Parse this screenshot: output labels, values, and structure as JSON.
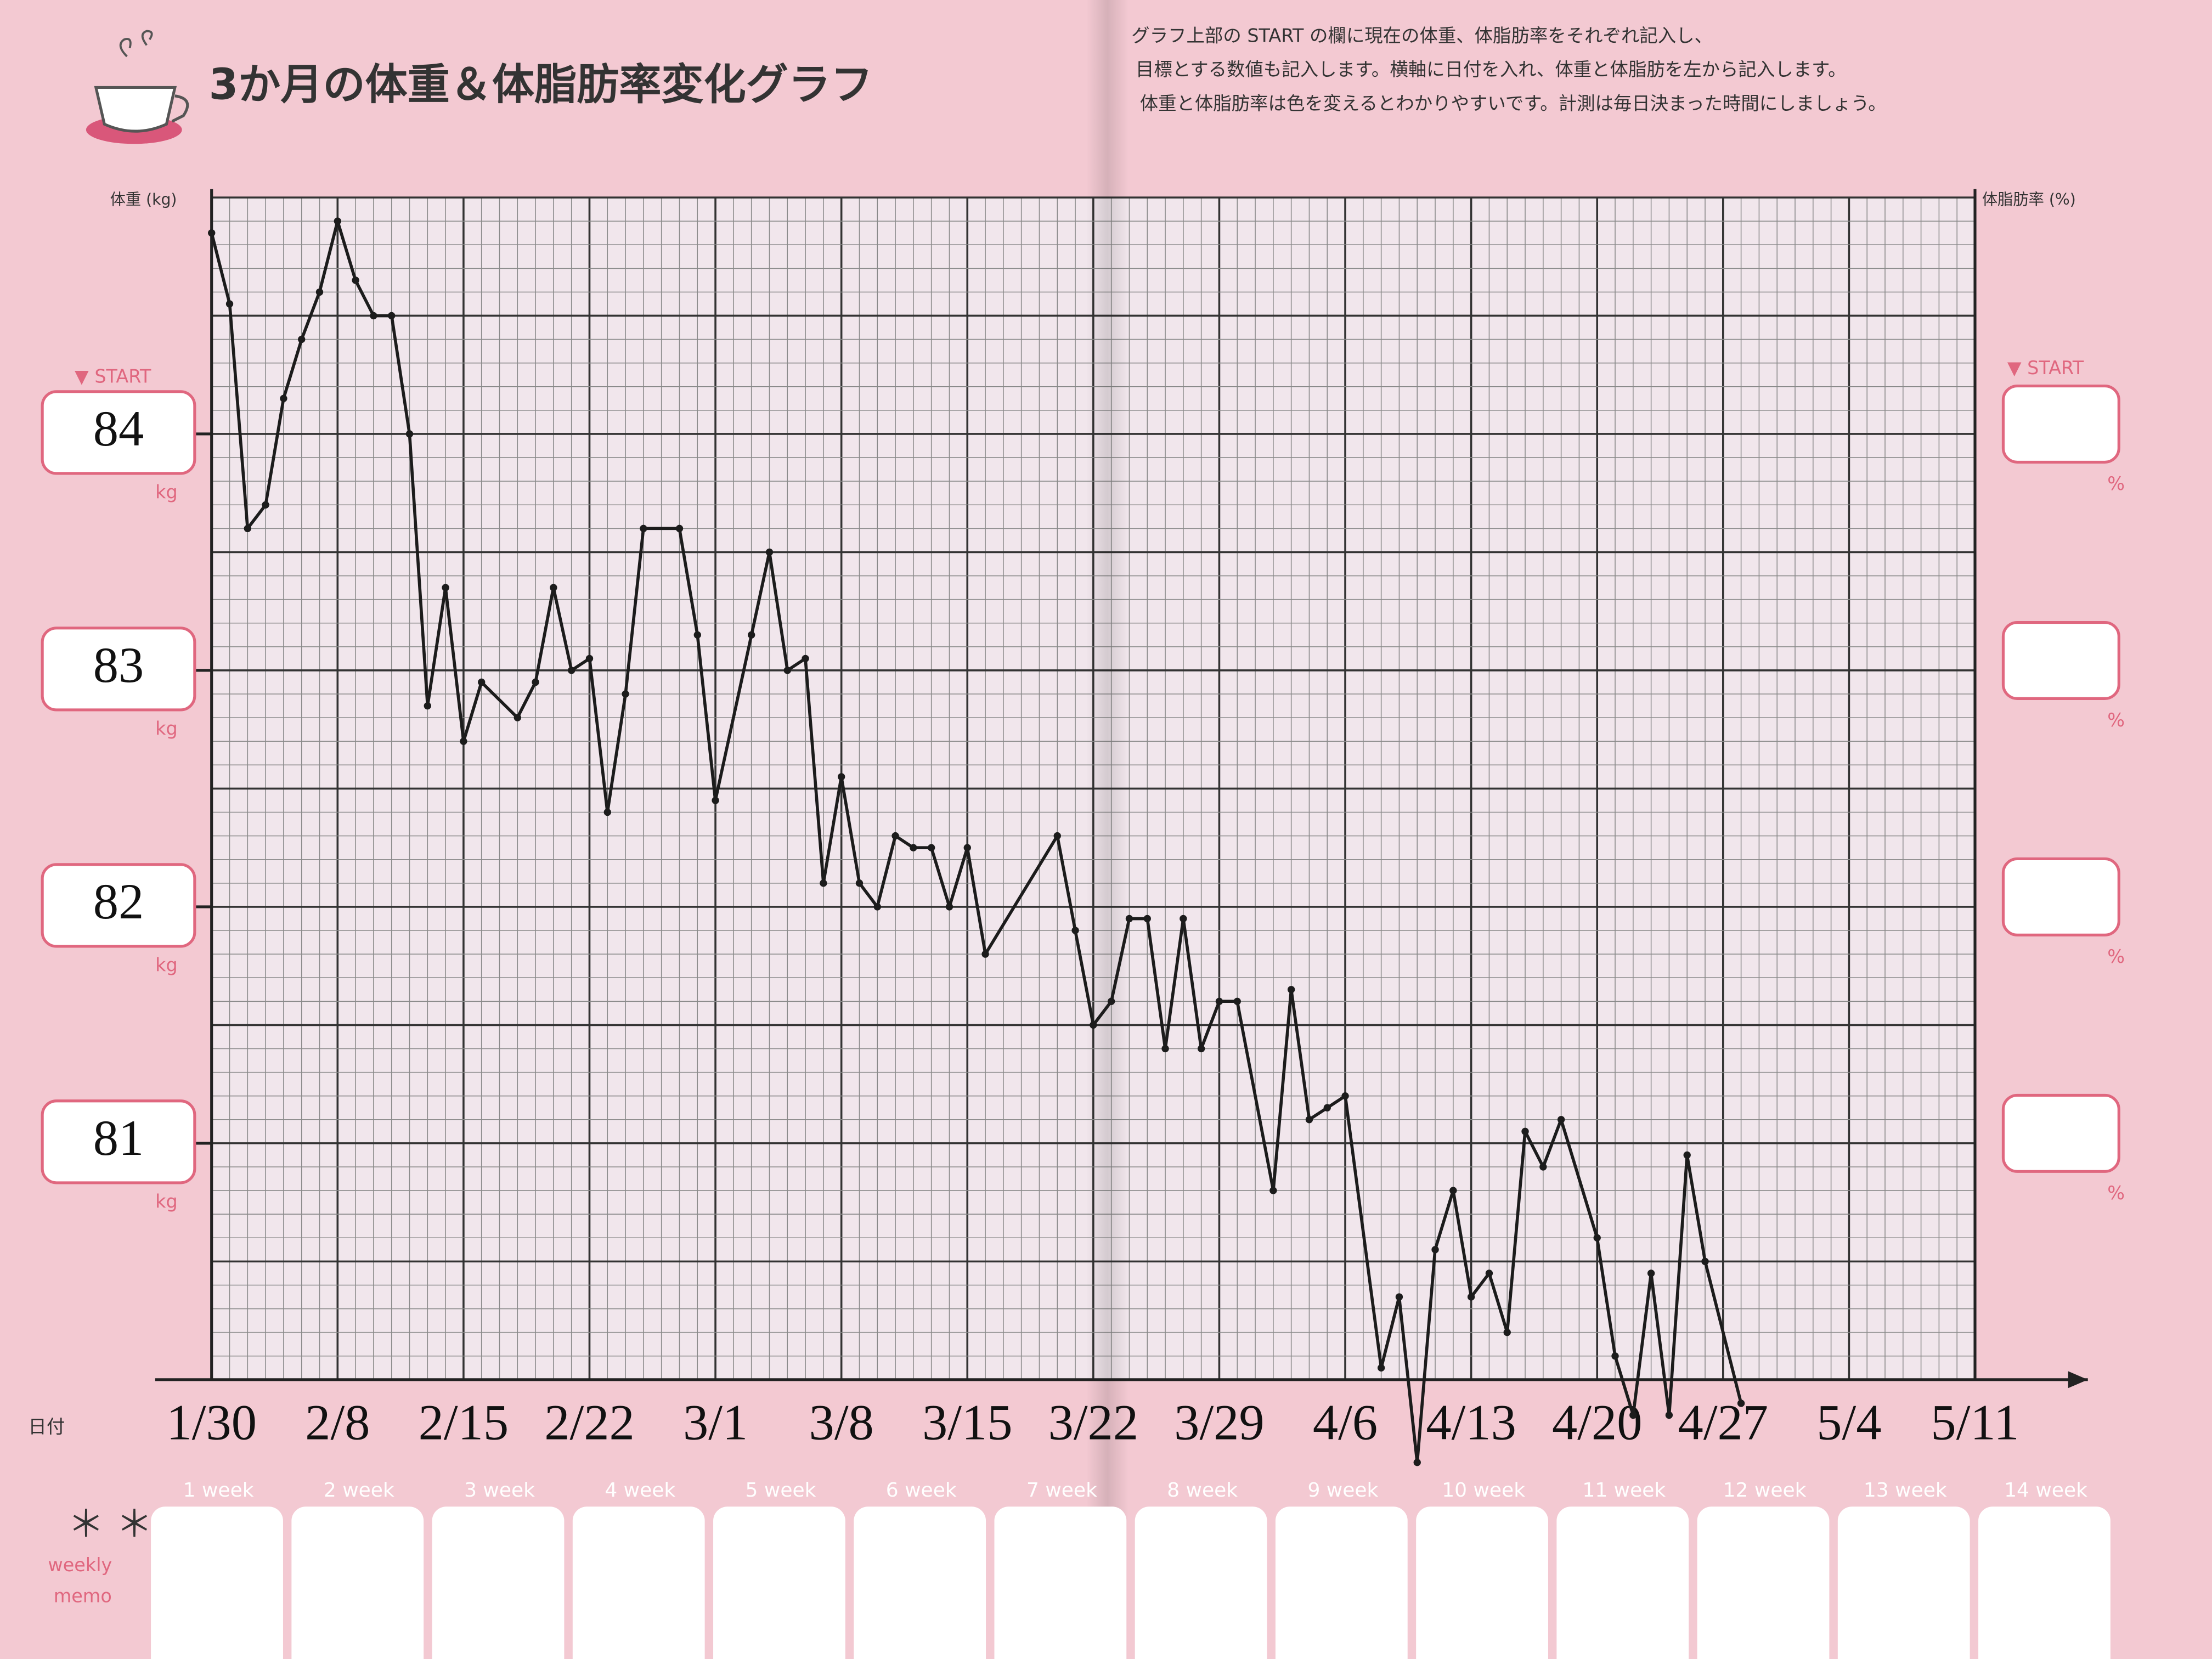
{
  "header": {
    "title": "3か月の体重＆体脂肪率変化グラフ",
    "instructions": [
      "グラフ上部の START の欄に現在の体重、体脂肪率をそれぞれ記入し、",
      "目標とする数値も記入します。横軸に日付を入れ、体重と体脂肪を左から記入します。",
      "体重と体脂肪率は色を変えるとわかりやすいです。計測は毎日決まった時間にしましょう。"
    ]
  },
  "chart_data": {
    "type": "line",
    "y_axis_label": "体重 (kg)",
    "y2_axis_label": "体脂肪率 (%)",
    "x_axis_label": "日付",
    "start_label": "▼ START",
    "y_unit": "kg",
    "y2_unit": "%",
    "categories": [
      "1/30",
      null,
      null,
      null,
      null,
      null,
      null,
      "2/8",
      null,
      null,
      null,
      null,
      null,
      null,
      "2/15",
      null,
      null,
      null,
      null,
      null,
      null,
      "2/22",
      null,
      null,
      null,
      null,
      null,
      null,
      "3/1",
      null,
      null,
      null,
      null,
      null,
      null,
      "3/8",
      null,
      null,
      null,
      null,
      null,
      null,
      "3/15",
      null,
      null,
      null,
      null,
      null,
      null,
      "3/22",
      null,
      null,
      null,
      null,
      null,
      null,
      "3/29",
      null,
      null,
      null,
      null,
      null,
      null,
      "4/6",
      null,
      null,
      null,
      null,
      null,
      null,
      "4/13",
      null,
      null,
      null,
      null,
      null,
      null,
      "4/20",
      null,
      null,
      null,
      null,
      null,
      null,
      "4/27",
      null,
      null,
      null,
      null,
      null,
      null,
      "5/4",
      null,
      null,
      null,
      null,
      null,
      null,
      "5/11"
    ],
    "series": [
      {
        "color": "#1c1c1c",
        "values": [
          84.85,
          84.55,
          83.6,
          83.7,
          84.15,
          84.4,
          84.6,
          84.9,
          84.65,
          84.5,
          84.5,
          84.0,
          82.85,
          83.35,
          82.7,
          82.95,
          null,
          82.8,
          82.95,
          83.35,
          83.0,
          83.05,
          82.4,
          82.9,
          83.6,
          null,
          83.6,
          83.15,
          82.45,
          null,
          83.15,
          83.5,
          83.0,
          83.05,
          82.1,
          82.55,
          82.1,
          82.0,
          82.3,
          82.25,
          82.25,
          82.0,
          82.25,
          81.8,
          null,
          null,
          null,
          82.3,
          81.9,
          81.5,
          81.6,
          81.95,
          81.95,
          81.4,
          81.95,
          81.4,
          81.6,
          81.6,
          null,
          80.8,
          81.65,
          81.1,
          81.15,
          81.2,
          null,
          80.05,
          80.35,
          79.65,
          80.55,
          80.8,
          80.35,
          80.45,
          80.2,
          81.05,
          80.9,
          81.1,
          null,
          80.6,
          80.1,
          79.85,
          80.45,
          79.85,
          80.95,
          80.5,
          null,
          79.9,
          null,
          null,
          null,
          null,
          null,
          null,
          null,
          null,
          null,
          null,
          null,
          null,
          null
        ]
      }
    ],
    "ylim": [
      80,
      85
    ],
    "yticks": [
      81,
      82,
      83,
      84
    ],
    "grid": true,
    "markers": true,
    "connect_nulls": true
  },
  "weekly": {
    "weeks": [
      "1 week",
      "2 week",
      "3 week",
      "4 week",
      "5 week",
      "6 week",
      "7 week",
      "8 week",
      "9 week",
      "10 week",
      "11 week",
      "12 week",
      "13 week",
      "14 week"
    ],
    "asterisks": "＊ ＊",
    "memo_label_lines": [
      "weekly",
      "memo"
    ]
  }
}
